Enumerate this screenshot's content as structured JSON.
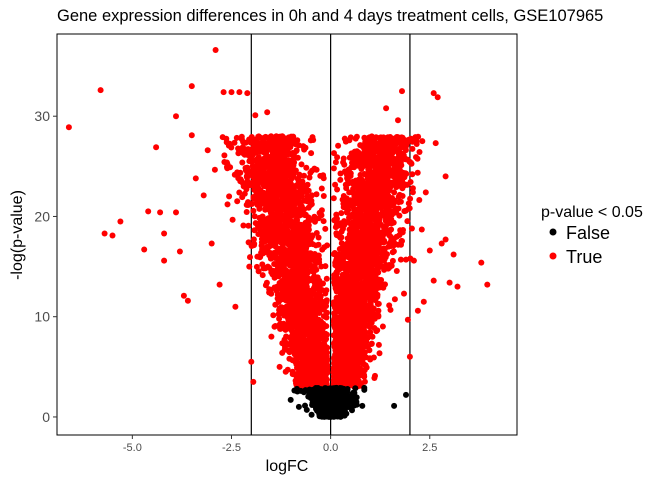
{
  "chart_data": {
    "type": "scatter",
    "title": "Gene expression differences in 0h and 4 days treatment cells, GSE107965",
    "xlabel": "logFC",
    "ylabel": "-log(p-value)",
    "xlim": [
      -6.9,
      4.7
    ],
    "ylim": [
      -1.8,
      38.2
    ],
    "x_ticks": [
      -5.0,
      -2.5,
      0.0,
      2.5
    ],
    "x_tick_labels": [
      "-5.0",
      "-2.5",
      "0.0",
      "2.5"
    ],
    "y_ticks": [
      0,
      10,
      20,
      30
    ],
    "y_tick_labels": [
      "0",
      "10",
      "20",
      "30"
    ],
    "vlines": [
      -2,
      0,
      2
    ],
    "grid": false,
    "legend": {
      "title": "p-value < 0.05",
      "position": "right",
      "entries": [
        {
          "label": "False",
          "color": "#000000"
        },
        {
          "label": "True",
          "color": "#ff0000"
        }
      ]
    },
    "series": [
      {
        "name": "False",
        "color": "#000000",
        "points": [
          [
            -0.55,
            2.1
          ],
          [
            -0.4,
            1.2
          ],
          [
            -0.3,
            0.5
          ],
          [
            -0.2,
            0.2
          ],
          [
            -0.1,
            0.1
          ],
          [
            0.0,
            0.05
          ],
          [
            0.1,
            0.15
          ],
          [
            0.2,
            0.3
          ],
          [
            0.3,
            0.8
          ],
          [
            0.4,
            1.3
          ],
          [
            0.6,
            2.4
          ],
          [
            -0.75,
            2.6
          ],
          [
            0.85,
            2.7
          ],
          [
            -0.8,
            1.0
          ],
          [
            0.8,
            1.1
          ],
          [
            0.85,
            2.9
          ],
          [
            1.6,
            1.1
          ],
          [
            1.9,
            2.2
          ],
          [
            0.65,
            1.5
          ],
          [
            -0.6,
            0.7
          ]
        ]
      },
      {
        "name": "True",
        "color": "#ff0000",
        "points": [
          [
            -6.6,
            28.9
          ],
          [
            -5.8,
            32.6
          ],
          [
            -5.7,
            18.3
          ],
          [
            -5.5,
            18.1
          ],
          [
            -5.3,
            19.5
          ],
          [
            -4.7,
            16.7
          ],
          [
            -4.6,
            20.5
          ],
          [
            -4.3,
            20.4
          ],
          [
            -4.4,
            26.9
          ],
          [
            -4.2,
            15.6
          ],
          [
            -4.2,
            18.3
          ],
          [
            -3.9,
            20.4
          ],
          [
            -3.9,
            30.0
          ],
          [
            -3.8,
            16.5
          ],
          [
            -3.7,
            12.1
          ],
          [
            -3.6,
            11.6
          ],
          [
            -3.5,
            33.0
          ],
          [
            -3.5,
            28.1
          ],
          [
            -3.4,
            23.8
          ],
          [
            -3.2,
            22.1
          ],
          [
            -3.1,
            26.6
          ],
          [
            -3.0,
            17.3
          ],
          [
            -2.9,
            36.6
          ],
          [
            -2.8,
            13.2
          ],
          [
            -2.7,
            32.4
          ],
          [
            -2.6,
            25.2
          ],
          [
            -2.6,
            21.2
          ],
          [
            -2.5,
            32.4
          ],
          [
            -2.4,
            11.0
          ],
          [
            -2.3,
            32.4
          ],
          [
            -2.2,
            19.1
          ],
          [
            -2.1,
            32.3
          ],
          [
            -2.05,
            15.0
          ],
          [
            -2.0,
            5.5
          ],
          [
            -1.95,
            3.5
          ],
          [
            -1.9,
            30.1
          ],
          [
            -1.8,
            26.5
          ],
          [
            -1.7,
            27.8
          ],
          [
            -1.6,
            30.4
          ],
          [
            -1.5,
            28.0
          ],
          [
            -1.4,
            27.2
          ],
          [
            -1.3,
            9.8
          ],
          [
            -1.2,
            21.1
          ],
          [
            -1.1,
            24.4
          ],
          [
            -1.0,
            26.2
          ],
          [
            -0.9,
            6.3
          ],
          [
            -0.8,
            4.2
          ],
          [
            -0.7,
            10.7
          ],
          [
            -0.6,
            13.0
          ],
          [
            -0.5,
            4.4
          ],
          [
            -0.4,
            5.7
          ],
          [
            -0.3,
            3.6
          ],
          [
            -0.2,
            2.9
          ],
          [
            0.15,
            2.8
          ],
          [
            0.25,
            3.8
          ],
          [
            0.3,
            6.3
          ],
          [
            0.4,
            6.0
          ],
          [
            0.5,
            8.5
          ],
          [
            0.6,
            8.9
          ],
          [
            0.7,
            17.1
          ],
          [
            0.8,
            15.7
          ],
          [
            0.9,
            13.7
          ],
          [
            1.0,
            15.9
          ],
          [
            1.1,
            27.6
          ],
          [
            1.2,
            25.7
          ],
          [
            1.3,
            27.5
          ],
          [
            1.4,
            30.8
          ],
          [
            1.5,
            27.5
          ],
          [
            1.55,
            26.5
          ],
          [
            1.6,
            22.4
          ],
          [
            1.7,
            29.6
          ],
          [
            1.75,
            23.4
          ],
          [
            1.8,
            32.5
          ],
          [
            1.85,
            12.3
          ],
          [
            1.9,
            15.7
          ],
          [
            1.95,
            9.7
          ],
          [
            2.0,
            6.0
          ],
          [
            2.05,
            18.8
          ],
          [
            2.1,
            15.6
          ],
          [
            2.2,
            10.6
          ],
          [
            2.3,
            18.7
          ],
          [
            2.35,
            11.5
          ],
          [
            2.4,
            22.4
          ],
          [
            2.5,
            16.6
          ],
          [
            2.6,
            13.6
          ],
          [
            2.6,
            32.3
          ],
          [
            2.7,
            31.9
          ],
          [
            2.8,
            17.3
          ],
          [
            2.9,
            24.0
          ],
          [
            2.9,
            17.7
          ],
          [
            3.0,
            13.4
          ],
          [
            3.1,
            16.2
          ],
          [
            3.2,
            13.0
          ],
          [
            3.8,
            15.4
          ],
          [
            3.95,
            13.2
          ]
        ]
      }
    ]
  }
}
